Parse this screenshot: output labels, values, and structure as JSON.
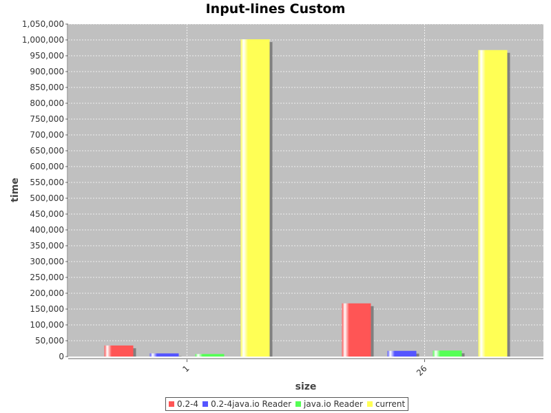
{
  "chart_data": {
    "type": "bar",
    "title": "Input-lines Custom",
    "xlabel": "size",
    "ylabel": "time",
    "categories": [
      "1",
      "26"
    ],
    "series": [
      {
        "name": "0.2-4",
        "color": "#ff5555",
        "values": [
          35000,
          168000
        ]
      },
      {
        "name": "0.2-4java.io Reader",
        "color": "#5555ff",
        "values": [
          10000,
          18000
        ]
      },
      {
        "name": "java.io Reader",
        "color": "#55ff55",
        "values": [
          8000,
          19000
        ]
      },
      {
        "name": "current",
        "color": "#ffff55",
        "values": [
          1002000,
          968000
        ]
      }
    ],
    "ylim": [
      0,
      1050000
    ],
    "yticks": [
      0,
      50000,
      100000,
      150000,
      200000,
      250000,
      300000,
      350000,
      400000,
      450000,
      500000,
      550000,
      600000,
      650000,
      700000,
      750000,
      800000,
      850000,
      900000,
      950000,
      1000000,
      1050000
    ],
    "yticklabels": [
      "0",
      "50,000",
      "100,000",
      "150,000",
      "200,000",
      "250,000",
      "300,000",
      "350,000",
      "400,000",
      "450,000",
      "500,000",
      "550,000",
      "600,000",
      "650,000",
      "700,000",
      "750,000",
      "800,000",
      "850,000",
      "900,000",
      "950,000",
      "1,000,000",
      "1,050,000"
    ],
    "grid": true,
    "legend_position": "bottom",
    "plot_background": "#c0c0c0"
  }
}
